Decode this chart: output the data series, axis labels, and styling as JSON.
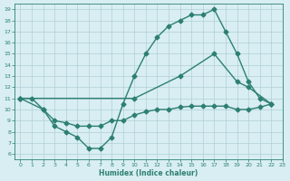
{
  "line1_x": [
    0,
    1,
    2,
    3,
    4,
    5,
    6,
    7,
    8,
    9,
    10,
    11,
    12,
    13,
    14,
    15,
    16,
    17,
    18,
    19,
    20,
    21,
    22
  ],
  "line1_y": [
    11,
    11,
    10,
    8.5,
    8,
    7.5,
    6.5,
    6.5,
    7.5,
    10.5,
    13,
    15,
    16.5,
    17.5,
    18,
    18.5,
    18.5,
    19,
    17,
    15,
    12.5,
    11,
    10.5
  ],
  "line2_x": [
    0,
    10,
    14,
    17,
    19,
    20,
    22
  ],
  "line2_y": [
    11,
    11,
    13,
    15,
    12.5,
    12,
    10.5
  ],
  "line3_x": [
    0,
    2,
    3,
    4,
    5,
    6,
    7,
    8,
    9,
    10,
    11,
    12,
    13,
    14,
    15,
    16,
    17,
    18,
    19,
    20,
    21,
    22
  ],
  "line3_y": [
    11,
    10,
    9,
    8.8,
    8.5,
    8.5,
    8.5,
    9,
    9,
    9.5,
    9.8,
    10,
    10,
    10.2,
    10.3,
    10.3,
    10.3,
    10.3,
    10,
    10,
    10.2,
    10.5
  ],
  "color": "#2d7f72",
  "bg_color": "#d8eef2",
  "grid_color": "#b0cfd6",
  "xlabel": "Humidex (Indice chaleur)",
  "xlim": [
    -0.5,
    23
  ],
  "ylim": [
    5.5,
    19.5
  ],
  "yticks": [
    6,
    7,
    8,
    9,
    10,
    11,
    12,
    13,
    14,
    15,
    16,
    17,
    18,
    19
  ],
  "xticks": [
    0,
    1,
    2,
    3,
    4,
    5,
    6,
    7,
    8,
    9,
    10,
    11,
    12,
    13,
    14,
    15,
    16,
    17,
    18,
    19,
    20,
    21,
    22,
    23
  ],
  "marker": "D",
  "markersize": 2.5,
  "linewidth": 1.0
}
